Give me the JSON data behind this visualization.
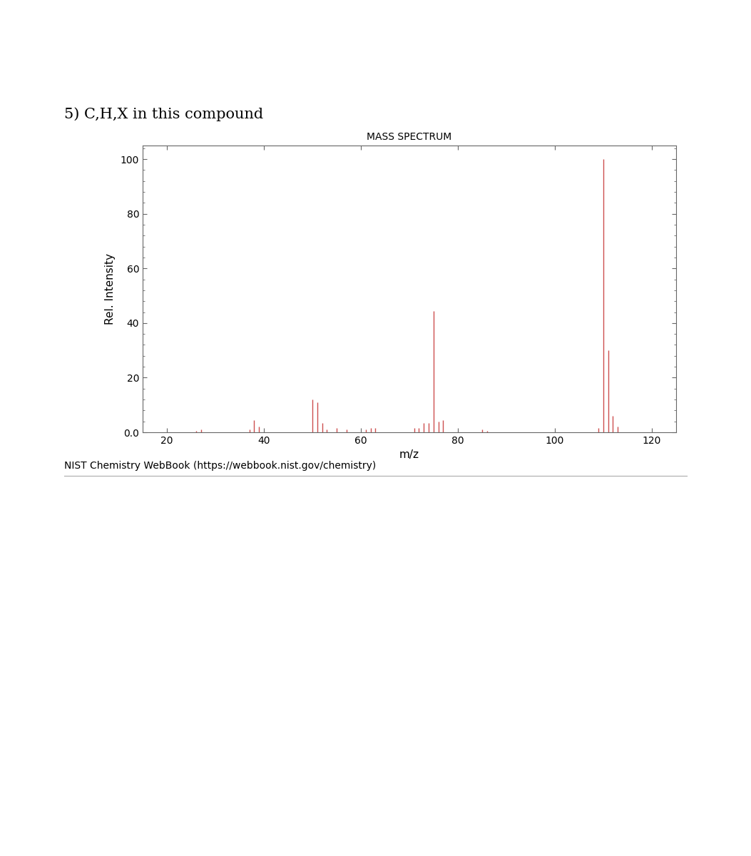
{
  "title": "MASS SPECTRUM",
  "xlabel": "m/z",
  "ylabel": "Rel. Intensity",
  "question_label": "5) C,H,X in this compound",
  "nist_label": "NIST Chemistry WebBook (https://webbook.nist.gov/chemistry)",
  "xlim": [
    15,
    125
  ],
  "ylim": [
    0,
    105
  ],
  "xticks": [
    20,
    40,
    60,
    80,
    100,
    120
  ],
  "yticks": [
    0.0,
    20,
    40,
    60,
    80,
    100
  ],
  "ytick_labels": [
    "0.0",
    "20",
    "40",
    "60",
    "80",
    "100"
  ],
  "line_color": "#cd4f4f",
  "peaks": [
    [
      26,
      0.5
    ],
    [
      27,
      1.0
    ],
    [
      37,
      1.0
    ],
    [
      38,
      4.5
    ],
    [
      39,
      2.0
    ],
    [
      50,
      12.0
    ],
    [
      51,
      11.0
    ],
    [
      52,
      3.5
    ],
    [
      53,
      1.0
    ],
    [
      55,
      1.5
    ],
    [
      57,
      1.0
    ],
    [
      61,
      1.0
    ],
    [
      62,
      1.5
    ],
    [
      63,
      1.5
    ],
    [
      71,
      1.5
    ],
    [
      72,
      1.5
    ],
    [
      73,
      3.5
    ],
    [
      74,
      3.5
    ],
    [
      75,
      44.5
    ],
    [
      76,
      4.0
    ],
    [
      77,
      4.5
    ],
    [
      85,
      1.0
    ],
    [
      86,
      0.5
    ],
    [
      109,
      1.5
    ],
    [
      110,
      100.0
    ],
    [
      111,
      30.0
    ],
    [
      112,
      6.0
    ],
    [
      113,
      2.0
    ]
  ],
  "spine_color": "#666666",
  "tick_color": "#666666",
  "question_fontsize": 15,
  "title_fontsize": 10,
  "axis_label_fontsize": 11,
  "tick_fontsize": 10,
  "nist_fontsize": 10
}
